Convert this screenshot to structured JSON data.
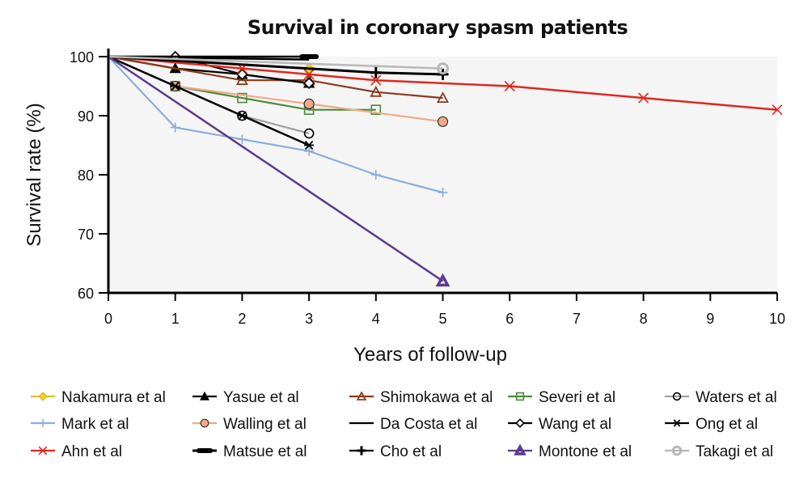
{
  "chart_data": {
    "type": "line",
    "title": "Survival in coronary spasm patients",
    "xlabel": "Years of follow-up",
    "ylabel": "Survival rate (%)",
    "xlim": [
      0,
      10
    ],
    "ylim": [
      60,
      100
    ],
    "xticks": [
      "0",
      "1",
      "2",
      "3",
      "4",
      "5",
      "6",
      "7",
      "8",
      "9",
      "10"
    ],
    "yticks": [
      "60",
      "70",
      "80",
      "90",
      "100"
    ],
    "grid": false,
    "legend_position": "bottom",
    "series": [
      {
        "name": "Nakamura et al",
        "color": "#d4c22a",
        "marker": "diamond",
        "marker_fill": "#f2d335",
        "x": [
          0,
          3
        ],
        "y": [
          100,
          98
        ]
      },
      {
        "name": "Yasue et al",
        "color": "#000000",
        "marker": "triangle-filled",
        "marker_fill": "#000000",
        "x": [
          0,
          1,
          2,
          3
        ],
        "y": [
          100,
          98,
          97,
          95.5
        ]
      },
      {
        "name": "Shimokawa et al",
        "color": "#8b3a1a",
        "marker": "triangle-open",
        "marker_fill": "none",
        "x": [
          0,
          2,
          3,
          4,
          5
        ],
        "y": [
          100,
          96,
          96,
          94,
          93
        ]
      },
      {
        "name": "Severi et al",
        "color": "#4a8a3a",
        "marker": "square-open",
        "marker_fill": "none",
        "x": [
          0,
          1,
          2,
          3,
          4
        ],
        "y": [
          100,
          95,
          93,
          91,
          91
        ]
      },
      {
        "name": "Waters et al",
        "color": "#a0a0a0",
        "marker": "circle-open",
        "marker_fill": "none",
        "x": [
          0,
          1,
          2,
          3
        ],
        "y": [
          100,
          95,
          90,
          87
        ]
      },
      {
        "name": "Mark et al",
        "color": "#8aaedc",
        "marker": "plus",
        "marker_fill": "none",
        "x": [
          0,
          1,
          2,
          3,
          4,
          5
        ],
        "y": [
          100,
          88,
          86,
          84,
          80,
          77
        ]
      },
      {
        "name": "Walling et al",
        "color": "#f0aa85",
        "marker": "circle-filled",
        "marker_fill": "#f0aa85",
        "x": [
          0,
          1,
          3,
          5
        ],
        "y": [
          100,
          95,
          92,
          89
        ]
      },
      {
        "name": "Da Costa et al",
        "color": "#000000",
        "marker": "none",
        "marker_fill": "none",
        "x": [
          0,
          3
        ],
        "y": [
          100,
          99.5
        ]
      },
      {
        "name": "Wang et al",
        "color": "#000000",
        "marker": "diamond-open",
        "marker_fill": "#ffffff",
        "x": [
          0,
          1,
          2,
          3
        ],
        "y": [
          100,
          100,
          97,
          95.5
        ]
      },
      {
        "name": "Ong et al",
        "color": "#000000",
        "marker": "asterisk",
        "marker_fill": "none",
        "x": [
          0,
          1,
          2,
          3
        ],
        "y": [
          100,
          95,
          90,
          85
        ]
      },
      {
        "name": "Ahn et al",
        "color": "#e0281e",
        "marker": "x",
        "marker_fill": "none",
        "x": [
          0,
          2,
          3,
          4,
          6,
          8,
          10
        ],
        "y": [
          100,
          98,
          97,
          96,
          95,
          93,
          91
        ]
      },
      {
        "name": "Matsue et al",
        "color": "#000000",
        "marker": "thick-dash",
        "marker_fill": "none",
        "x": [
          0,
          3
        ],
        "y": [
          100,
          100
        ]
      },
      {
        "name": "Cho et al",
        "color": "#000000",
        "marker": "cross",
        "marker_fill": "none",
        "x": [
          0,
          4,
          5
        ],
        "y": [
          100,
          97.3,
          97
        ]
      },
      {
        "name": "Montone et al",
        "color": "#5b3a8e",
        "marker": "triangle-thick",
        "marker_fill": "none",
        "x": [
          0,
          5
        ],
        "y": [
          100,
          62
        ]
      },
      {
        "name": "Takagi et al",
        "color": "#b8b8b8",
        "marker": "circle-gray",
        "marker_fill": "#c8c8c8",
        "x": [
          0,
          5
        ],
        "y": [
          100,
          98
        ]
      }
    ]
  }
}
